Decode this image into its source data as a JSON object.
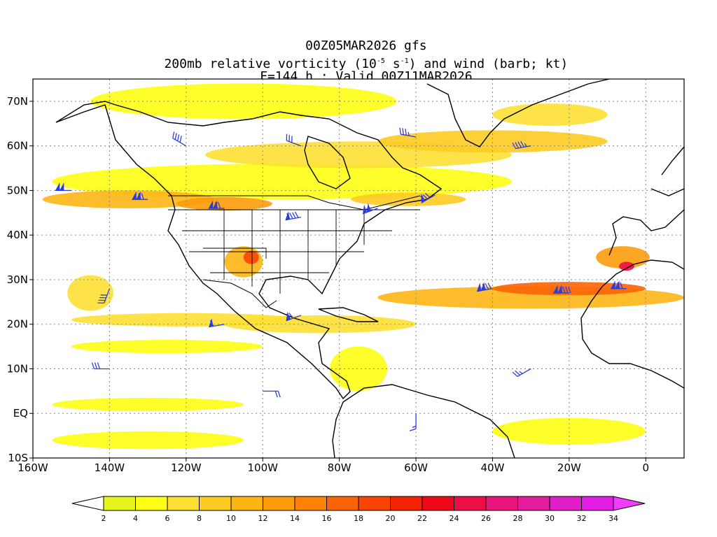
{
  "title": {
    "line1": "00Z05MAR2026 gfs",
    "line2_pre": "200mb relative vorticity (10",
    "line2_exp1": "-5",
    "line2_mid": " s",
    "line2_exp2": "-1",
    "line2_post": ") and wind (barb; kt)",
    "line3": "F=144 h ; Valid 00Z11MAR2026"
  },
  "colors": {
    "barb": "#2a3ee0",
    "coast": "#000000",
    "grid": "#888888"
  },
  "chart_data": {
    "type": "heatmap",
    "projection": "lat-lon",
    "xlim": [
      -160,
      10
    ],
    "ylim": [
      -10,
      75
    ],
    "x_ticks": [
      {
        "value": -160,
        "label": "160W"
      },
      {
        "value": -140,
        "label": "140W"
      },
      {
        "value": -120,
        "label": "120W"
      },
      {
        "value": -100,
        "label": "100W"
      },
      {
        "value": -80,
        "label": "80W"
      },
      {
        "value": -60,
        "label": "60W"
      },
      {
        "value": -40,
        "label": "40W"
      },
      {
        "value": -20,
        "label": "20W"
      },
      {
        "value": 0,
        "label": "0"
      }
    ],
    "y_ticks": [
      {
        "value": -10,
        "label": "10S"
      },
      {
        "value": 0,
        "label": "EQ"
      },
      {
        "value": 10,
        "label": "10N"
      },
      {
        "value": 20,
        "label": "20N"
      },
      {
        "value": 30,
        "label": "30N"
      },
      {
        "value": 40,
        "label": "40N"
      },
      {
        "value": 50,
        "label": "50N"
      },
      {
        "value": 60,
        "label": "60N"
      },
      {
        "value": 70,
        "label": "70N"
      }
    ],
    "grid": true,
    "colorbar": {
      "labels": [
        "2",
        "4",
        "6",
        "8",
        "10",
        "12",
        "14",
        "16",
        "18",
        "20",
        "22",
        "24",
        "26",
        "28",
        "30",
        "32",
        "34"
      ],
      "colors": [
        "#e6f51b",
        "#fefe14",
        "#fde033",
        "#fdcb22",
        "#fdb514",
        "#fd9b0c",
        "#fd8206",
        "#fb6404",
        "#f94503",
        "#f42303",
        "#ee0a19",
        "#ec0f45",
        "#e8157a",
        "#e31c9e",
        "#e01ec7",
        "#e21de6",
        "#ed3df3"
      ],
      "under_color": "#ffffff",
      "over_color": "#f13dff"
    },
    "vorticity_regions": [
      {
        "lon": -95,
        "lat": 52,
        "w": 120,
        "h": 8,
        "level": 4
      },
      {
        "lon": -135,
        "lat": 48,
        "w": 45,
        "h": 4,
        "level": 10
      },
      {
        "lon": -110,
        "lat": 47,
        "w": 25,
        "h": 3,
        "level": 12
      },
      {
        "lon": -62,
        "lat": 48,
        "w": 30,
        "h": 3,
        "level": 8
      },
      {
        "lon": -75,
        "lat": 58,
        "w": 80,
        "h": 6,
        "level": 6
      },
      {
        "lon": -40,
        "lat": 61,
        "w": 60,
        "h": 5,
        "level": 8
      },
      {
        "lon": -105,
        "lat": 70,
        "w": 80,
        "h": 8,
        "level": 3
      },
      {
        "lon": -25,
        "lat": 67,
        "w": 30,
        "h": 5,
        "level": 6
      },
      {
        "lon": -30,
        "lat": 26,
        "w": 80,
        "h": 5,
        "level": 10
      },
      {
        "lon": -20,
        "lat": 28,
        "w": 40,
        "h": 3,
        "level": 16
      },
      {
        "lon": -6,
        "lat": 35,
        "w": 14,
        "h": 5,
        "level": 12
      },
      {
        "lon": -5,
        "lat": 33,
        "w": 4,
        "h": 2,
        "level": 24
      },
      {
        "lon": -105,
        "lat": 34,
        "w": 10,
        "h": 7,
        "level": 10
      },
      {
        "lon": -103,
        "lat": 35,
        "w": 4,
        "h": 3,
        "level": 18
      },
      {
        "lon": -145,
        "lat": 27,
        "w": 12,
        "h": 8,
        "level": 6
      },
      {
        "lon": -120,
        "lat": 21,
        "w": 60,
        "h": 3,
        "level": 6
      },
      {
        "lon": -125,
        "lat": 15,
        "w": 50,
        "h": 3,
        "level": 4
      },
      {
        "lon": -85,
        "lat": 20,
        "w": 50,
        "h": 4,
        "level": 5
      },
      {
        "lon": -75,
        "lat": 10,
        "w": 15,
        "h": 10,
        "level": 4
      },
      {
        "lon": -130,
        "lat": 2,
        "w": 50,
        "h": 3,
        "level": 3
      },
      {
        "lon": -130,
        "lat": -6,
        "w": 50,
        "h": 4,
        "level": 3
      },
      {
        "lon": -20,
        "lat": -4,
        "w": 40,
        "h": 6,
        "level": 3
      }
    ],
    "wind_barbs": [
      {
        "lon": -150,
        "lat": 50,
        "speed": 100,
        "dir": 270
      },
      {
        "lon": -130,
        "lat": 48,
        "speed": 120,
        "dir": 270
      },
      {
        "lon": -110,
        "lat": 46,
        "speed": 120,
        "dir": 270
      },
      {
        "lon": -90,
        "lat": 44,
        "speed": 90,
        "dir": 260
      },
      {
        "lon": -70,
        "lat": 46,
        "speed": 100,
        "dir": 250
      },
      {
        "lon": -55,
        "lat": 49,
        "speed": 80,
        "dir": 240
      },
      {
        "lon": -40,
        "lat": 28,
        "speed": 130,
        "dir": 260
      },
      {
        "lon": -20,
        "lat": 27,
        "speed": 140,
        "dir": 270
      },
      {
        "lon": -5,
        "lat": 28,
        "speed": 120,
        "dir": 270
      },
      {
        "lon": -140,
        "lat": 28,
        "speed": 40,
        "dir": 200
      },
      {
        "lon": -110,
        "lat": 20,
        "speed": 60,
        "dir": 260
      },
      {
        "lon": -90,
        "lat": 22,
        "speed": 70,
        "dir": 250
      },
      {
        "lon": -120,
        "lat": 60,
        "speed": 40,
        "dir": 300
      },
      {
        "lon": -90,
        "lat": 60,
        "speed": 30,
        "dir": 290
      },
      {
        "lon": -60,
        "lat": 62,
        "speed": 35,
        "dir": 280
      },
      {
        "lon": -30,
        "lat": 60,
        "speed": 45,
        "dir": 260
      },
      {
        "lon": -140,
        "lat": 10,
        "speed": 30,
        "dir": 270
      },
      {
        "lon": -100,
        "lat": 5,
        "speed": 20,
        "dir": 90
      },
      {
        "lon": -60,
        "lat": 0,
        "speed": 15,
        "dir": 180
      },
      {
        "lon": -30,
        "lat": 10,
        "speed": 25,
        "dir": 240
      }
    ]
  }
}
